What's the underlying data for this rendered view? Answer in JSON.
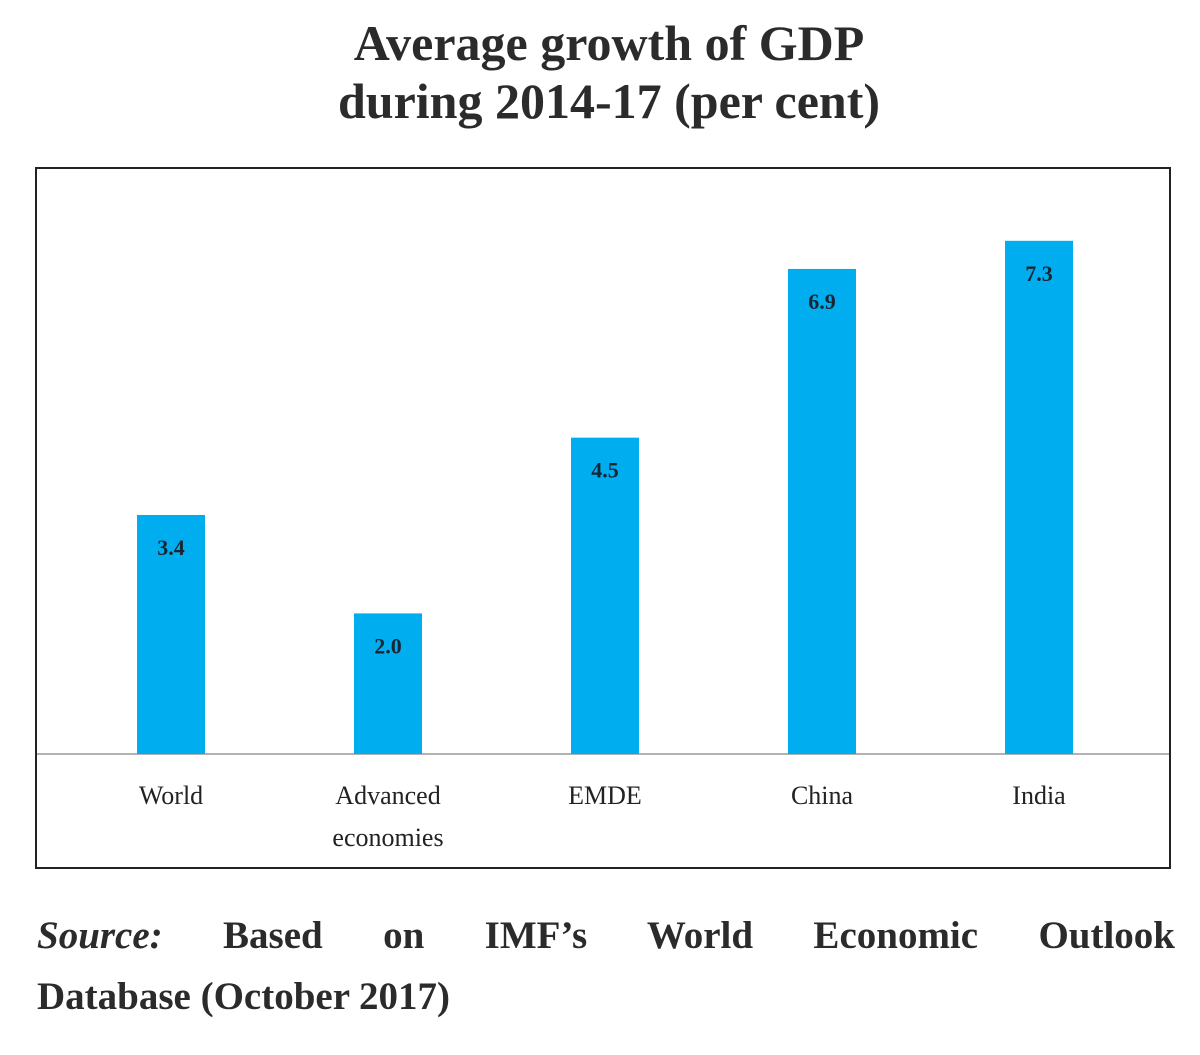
{
  "title": {
    "line1": "Average growth of GDP",
    "line2": "during 2014-17 (per cent)"
  },
  "chart_data": {
    "type": "bar",
    "title": "Average growth of GDP during 2014-17 (per cent)",
    "categories": [
      "World",
      "Advanced economies",
      "EMDE",
      "China",
      "India"
    ],
    "category_lines": [
      [
        "World"
      ],
      [
        "Advanced",
        "economies"
      ],
      [
        "EMDE"
      ],
      [
        "China"
      ],
      [
        "India"
      ]
    ],
    "values": [
      3.4,
      2.0,
      4.5,
      6.9,
      7.3
    ],
    "data_labels": [
      "3.4",
      "2.0",
      "4.5",
      "6.9",
      "7.3"
    ],
    "xlabel": "",
    "ylabel": "",
    "ylim": [
      0,
      8.5
    ],
    "grid": false,
    "legend": "none",
    "bar_color": "#00AEEF"
  },
  "source": {
    "label": "Source:",
    "line1_rest": "Based on IMF’s World Economic Outlook",
    "line2": "Database (October 2017)"
  }
}
